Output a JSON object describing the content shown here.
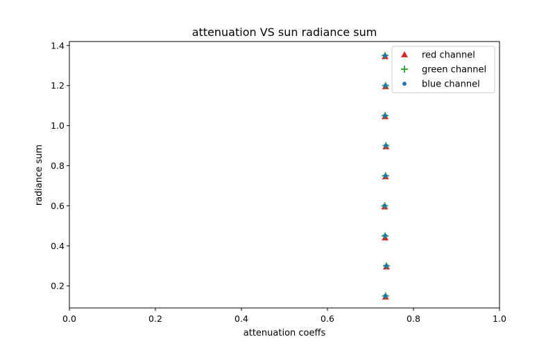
{
  "chart_data": {
    "type": "scatter",
    "title": "attenuation VS sun radiance sum",
    "xlabel": "attenuation coeffs",
    "ylabel": "radiance sum",
    "xlim": [
      0.0,
      1.0
    ],
    "ylim": [
      0.09,
      1.42
    ],
    "x_ticks": [
      "0.0",
      "0.2",
      "0.4",
      "0.6",
      "0.8",
      "1.0"
    ],
    "y_ticks": [
      "0.2",
      "0.4",
      "0.6",
      "0.8",
      "1.0",
      "1.2",
      "1.4"
    ],
    "grid": false,
    "legend_position": "top-right",
    "series": [
      {
        "name": "red channel",
        "marker": "triangle",
        "color": "#d62728",
        "x": [
          0.735,
          0.737,
          0.734,
          0.733,
          0.735,
          0.736,
          0.734,
          0.735,
          0.734
        ],
        "y": [
          0.145,
          0.295,
          0.44,
          0.595,
          0.745,
          0.895,
          1.045,
          1.195,
          1.345
        ]
      },
      {
        "name": "green channel",
        "marker": "plus",
        "color": "#2ca02c",
        "x": [
          0.735,
          0.737,
          0.734,
          0.733,
          0.735,
          0.736,
          0.734,
          0.735,
          0.734
        ],
        "y": [
          0.15,
          0.3,
          0.45,
          0.6,
          0.75,
          0.9,
          1.05,
          1.2,
          1.35
        ]
      },
      {
        "name": "blue channel",
        "marker": "circle",
        "color": "#1f77b4",
        "x": [
          0.735,
          0.737,
          0.734,
          0.733,
          0.735,
          0.736,
          0.734,
          0.735,
          0.734
        ],
        "y": [
          0.15,
          0.3,
          0.45,
          0.6,
          0.75,
          0.9,
          1.05,
          1.2,
          1.35
        ]
      }
    ]
  }
}
